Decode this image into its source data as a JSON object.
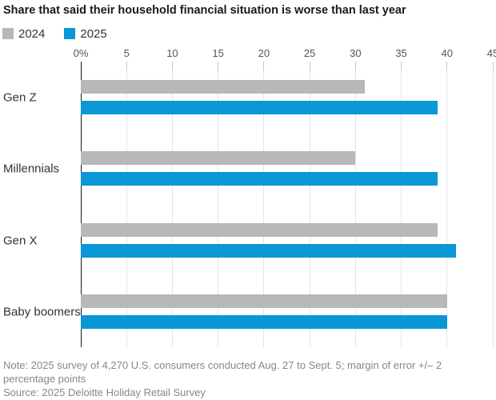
{
  "title": "Share that said their household financial situation is worse than last year",
  "note": "Note: 2025 survey of 4,270 U.S. consumers conducted Aug. 27 to Sept. 5; margin of error +/– 2 percentage points",
  "source": "Source: 2025 Deloitte Holiday Retail Survey",
  "colors": {
    "bar_2024": "#b8b8b8",
    "bar_2025": "#0997d5",
    "axis_line": "#1a1a1a",
    "gridline": "#e4e4e4"
  },
  "chart_data": {
    "type": "bar",
    "orientation": "horizontal",
    "title": "Share that said their household financial situation is worse than last year",
    "categories": [
      "Gen Z",
      "Millennials",
      "Gen X",
      "Baby boomers"
    ],
    "series": [
      {
        "name": "2024",
        "color": "#b8b8b8",
        "values": [
          31,
          30,
          39,
          40
        ]
      },
      {
        "name": "2025",
        "color": "#0997d5",
        "values": [
          39,
          39,
          41,
          40
        ]
      }
    ],
    "xlim": [
      0,
      45
    ],
    "x_tick_values": [
      0,
      5,
      10,
      15,
      20,
      25,
      30,
      35,
      40,
      45
    ],
    "x_tick_labels": [
      "0%",
      "5",
      "10",
      "15",
      "20",
      "25",
      "30",
      "35",
      "40",
      "45"
    ],
    "unit": "percent",
    "grid": true,
    "legend_position": "top-left"
  }
}
